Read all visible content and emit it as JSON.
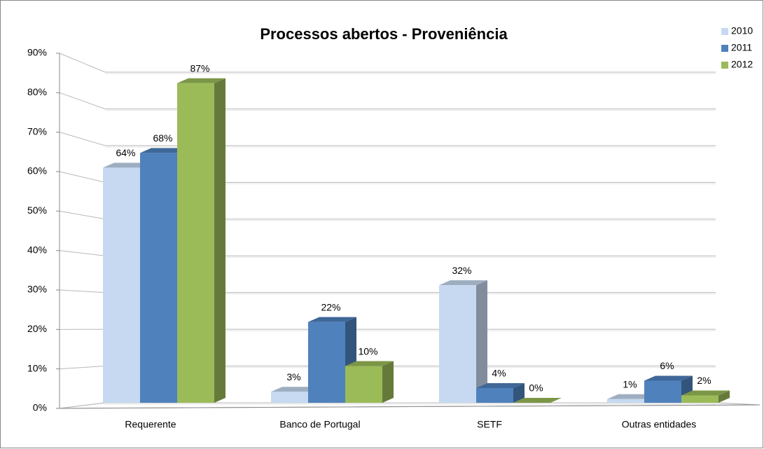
{
  "chart_data": {
    "type": "bar3d",
    "title": "Processos abertos - Proveniência",
    "categories": [
      "Requerente",
      "Banco de Portugal",
      "SETF",
      "Outras entidades"
    ],
    "series": [
      {
        "name": "2010",
        "color": "#c6d9f1",
        "values": [
          64,
          3,
          32,
          1
        ],
        "value_labels": [
          "64%",
          "3%",
          "32%",
          "1%"
        ]
      },
      {
        "name": "2011",
        "color": "#4f81bd",
        "values": [
          68,
          22,
          4,
          6
        ],
        "value_labels": [
          "68%",
          "22%",
          "4%",
          "6%"
        ]
      },
      {
        "name": "2012",
        "color": "#9bbb59",
        "values": [
          87,
          10,
          0,
          2
        ],
        "value_labels": [
          "87%",
          "10%",
          "0%",
          "2%"
        ]
      }
    ],
    "ylim": [
      0,
      90
    ],
    "yticks": [
      {
        "value": 0,
        "label": "0%"
      },
      {
        "value": 10,
        "label": "10%"
      },
      {
        "value": 20,
        "label": "20%"
      },
      {
        "value": 30,
        "label": "30%"
      },
      {
        "value": 40,
        "label": "40%"
      },
      {
        "value": 50,
        "label": "50%"
      },
      {
        "value": 60,
        "label": "60%"
      },
      {
        "value": 70,
        "label": "70%"
      },
      {
        "value": 80,
        "label": "80%"
      },
      {
        "value": 90,
        "label": "90%"
      }
    ],
    "grid": true,
    "legend": "top-right"
  }
}
